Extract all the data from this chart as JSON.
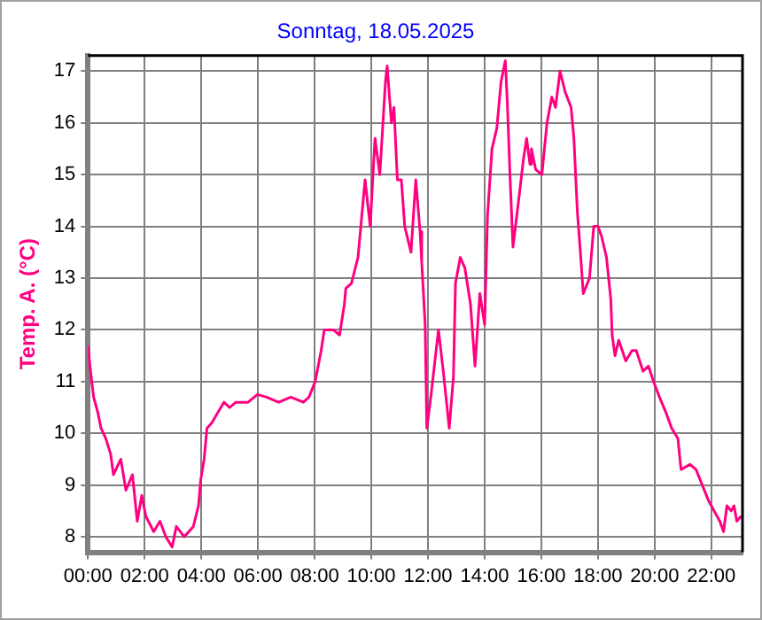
{
  "chart_data": {
    "type": "line",
    "title": "Sonntag, 18.05.2025",
    "ylabel": "Temp. A. (°C)",
    "x": [
      0,
      0.09,
      0.2,
      0.35,
      0.46,
      0.63,
      0.8,
      0.9,
      1.16,
      1.34,
      1.57,
      1.74,
      1.9,
      2.04,
      2.32,
      2.54,
      2.75,
      2.97,
      3.12,
      3.4,
      3.72,
      3.9,
      3.98,
      4.1,
      4.2,
      4.37,
      4.58,
      4.8,
      5.0,
      5.22,
      5.65,
      5.98,
      6.3,
      6.73,
      7.16,
      7.6,
      7.8,
      8.02,
      8.23,
      8.34,
      8.66,
      8.88,
      9.05,
      9.1,
      9.3,
      9.53,
      9.63,
      9.78,
      9.96,
      10.13,
      10.3,
      10.5,
      10.56,
      10.71,
      10.8,
      10.92,
      11.06,
      11.18,
      11.4,
      11.57,
      11.72,
      11.78,
      11.9,
      11.96,
      12.1,
      12.37,
      12.54,
      12.75,
      12.9,
      12.97,
      13.14,
      13.3,
      13.5,
      13.66,
      13.83,
      14.0,
      14.1,
      14.26,
      14.43,
      14.58,
      14.73,
      14.8,
      14.9,
      15.0,
      15.22,
      15.37,
      15.48,
      15.6,
      15.65,
      15.8,
      16.02,
      16.2,
      16.37,
      16.5,
      16.66,
      16.84,
      17.05,
      17.15,
      17.27,
      17.38,
      17.48,
      17.7,
      17.85,
      18.0,
      18.13,
      18.3,
      18.45,
      18.5,
      18.6,
      18.73,
      18.98,
      19.2,
      19.35,
      19.59,
      19.78,
      19.96,
      20.17,
      20.4,
      20.6,
      20.82,
      20.93,
      21.25,
      21.46,
      21.68,
      21.9,
      22.1,
      22.3,
      22.43,
      22.55,
      22.7,
      22.8,
      22.9,
      23.05
    ],
    "series": [
      {
        "color": "#ff0080",
        "values": [
          11.7,
          11.2,
          10.7,
          10.4,
          10.1,
          9.9,
          9.6,
          9.2,
          9.5,
          8.9,
          9.2,
          8.3,
          8.8,
          8.4,
          8.1,
          8.3,
          8.0,
          7.8,
          8.2,
          8.0,
          8.2,
          8.6,
          9.1,
          9.5,
          10.1,
          10.2,
          10.4,
          10.6,
          10.5,
          10.6,
          10.6,
          10.75,
          10.7,
          10.6,
          10.7,
          10.6,
          10.7,
          11.0,
          11.6,
          12.0,
          12.0,
          11.9,
          12.5,
          12.8,
          12.9,
          13.4,
          14.0,
          14.9,
          14.0,
          15.7,
          15.0,
          16.8,
          17.1,
          16.0,
          16.3,
          14.9,
          14.9,
          14.0,
          13.5,
          14.9,
          13.9,
          13.3,
          12.1,
          10.1,
          10.7,
          12.0,
          11.2,
          10.1,
          11.1,
          12.9,
          13.4,
          13.2,
          12.5,
          11.3,
          12.7,
          12.1,
          14.2,
          15.5,
          15.9,
          16.8,
          17.2,
          16.4,
          14.9,
          13.6,
          14.6,
          15.3,
          15.7,
          15.2,
          15.5,
          15.1,
          15.0,
          16.0,
          16.5,
          16.3,
          17.0,
          16.6,
          16.3,
          15.7,
          14.3,
          13.5,
          12.7,
          13.0,
          14.0,
          14.0,
          13.8,
          13.4,
          12.6,
          11.9,
          11.5,
          11.8,
          11.4,
          11.6,
          11.6,
          11.2,
          11.3,
          11.0,
          10.7,
          10.4,
          10.1,
          9.9,
          9.3,
          9.4,
          9.3,
          9.0,
          8.7,
          8.5,
          8.3,
          8.1,
          8.6,
          8.5,
          8.6,
          8.3,
          8.4
        ]
      }
    ],
    "xlim": [
      0,
      23.1
    ],
    "xticks": [
      {
        "value": 0,
        "label": "00:00"
      },
      {
        "value": 2,
        "label": "02:00"
      },
      {
        "value": 4,
        "label": "04:00"
      },
      {
        "value": 6,
        "label": "06:00"
      },
      {
        "value": 8,
        "label": "08:00"
      },
      {
        "value": 10,
        "label": "10:00"
      },
      {
        "value": 12,
        "label": "12:00"
      },
      {
        "value": 14,
        "label": "14:00"
      },
      {
        "value": 16,
        "label": "16:00"
      },
      {
        "value": 18,
        "label": "18:00"
      },
      {
        "value": 20,
        "label": "20:00"
      },
      {
        "value": 22,
        "label": "22:00"
      }
    ],
    "ylim": [
      7.7,
      17.3
    ],
    "yticks": [
      8,
      9,
      10,
      11,
      12,
      13,
      14,
      15,
      16,
      17
    ],
    "grid": true,
    "legend": false,
    "marker": "none",
    "line_style": "solid"
  }
}
